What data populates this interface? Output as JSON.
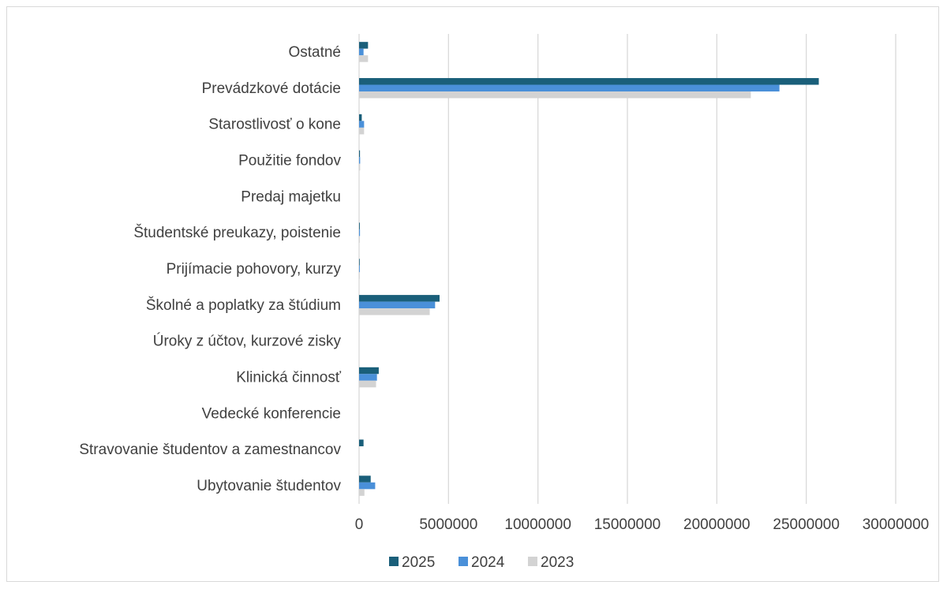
{
  "chart_data": {
    "type": "bar",
    "orientation": "horizontal",
    "title": "",
    "xlabel": "",
    "ylabel": "",
    "xlim": [
      0,
      30000000
    ],
    "ticks": [
      0,
      5000000,
      10000000,
      15000000,
      20000000,
      25000000,
      30000000
    ],
    "tick_labels": [
      "0",
      "5000000",
      "10000000",
      "15000000",
      "20000000",
      "25000000",
      "30000000"
    ],
    "grid": "vertical",
    "legend_position": "bottom",
    "categories": [
      "Ostatné",
      "Prevádzkové dotácie",
      "Starostlivosť o kone",
      "Použitie fondov",
      "Predaj majetku",
      "Študentské preukazy, poistenie",
      "Prijímacie pohovory, kurzy",
      "Školné a poplatky za štúdium",
      "Úroky z účtov, kurzové zisky",
      "Klinická činnosť",
      "Vedecké konferencie",
      "Stravovanie študentov a zamestnancov",
      "Ubytovanie študentov"
    ],
    "series": [
      {
        "name": "2025",
        "color": "#1a5f7a",
        "values": [
          500000,
          25700000,
          150000,
          50000,
          0,
          40000,
          30000,
          4500000,
          0,
          1100000,
          0,
          250000,
          650000
        ]
      },
      {
        "name": "2024",
        "color": "#4a90d9",
        "values": [
          250000,
          23500000,
          280000,
          60000,
          0,
          50000,
          40000,
          4250000,
          0,
          1000000,
          0,
          0,
          900000
        ]
      },
      {
        "name": "2023",
        "color": "#d3d3d3",
        "values": [
          500000,
          21900000,
          280000,
          60000,
          0,
          40000,
          30000,
          3950000,
          0,
          950000,
          0,
          0,
          300000
        ]
      }
    ]
  }
}
